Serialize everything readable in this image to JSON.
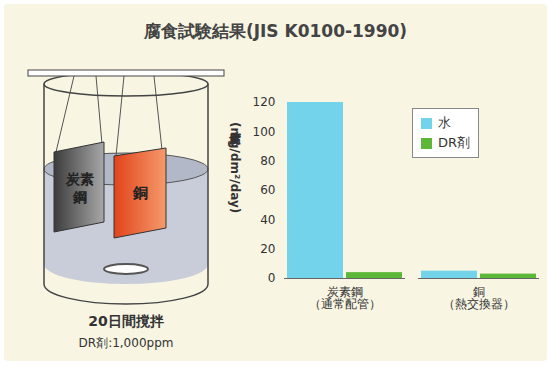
{
  "chart_data": {
    "type": "bar",
    "title": "腐食試験結果(JIS K0100-1990)",
    "ylabel": "腐食度(mg/dm²/day)",
    "categories": [
      "炭素鋼",
      "銅"
    ],
    "category_notes": [
      "（通常配管）",
      "（熱交換器）"
    ],
    "series": [
      {
        "name": "水",
        "color": "#72d3ea",
        "values": [
          120,
          5
        ]
      },
      {
        "name": "DR剤",
        "color": "#5db83a",
        "values": [
          4,
          3
        ]
      }
    ],
    "ylim": [
      0,
      120
    ],
    "yticks": [
      0,
      20,
      40,
      60,
      80,
      100,
      120
    ],
    "grid": false,
    "legend": "top-right",
    "illustration": {
      "plates": [
        "炭素鋼",
        "銅"
      ],
      "caption": "20日間撹拌",
      "note": "DR剤:1,000ppm"
    }
  }
}
